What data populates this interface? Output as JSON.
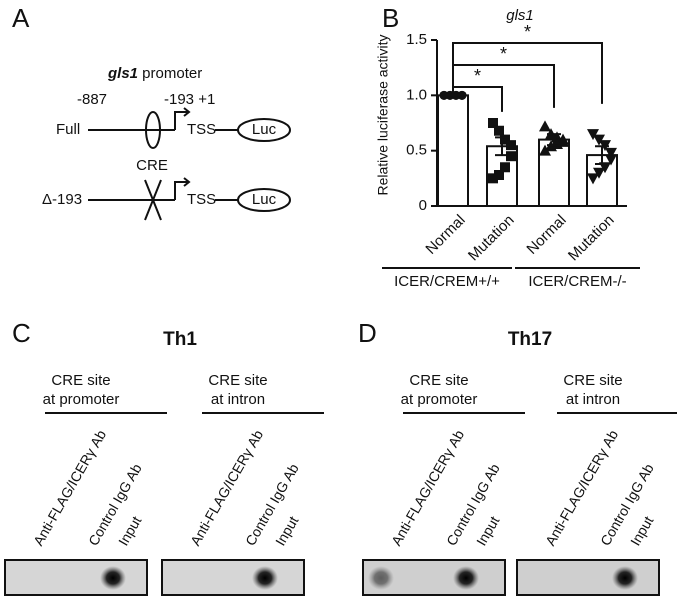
{
  "panel_labels": [
    "A",
    "B",
    "C",
    "D"
  ],
  "promoter": {
    "gene": "gls1",
    "title_rest": " promoter",
    "positions": [
      "-887",
      "-193 +1"
    ],
    "constructs": [
      {
        "name": "Full",
        "tss": "TSS",
        "reporter": "Luc"
      },
      {
        "name": "Δ-193",
        "tss": "TSS",
        "reporter": "Luc"
      }
    ],
    "element": "CRE"
  },
  "chart_data": {
    "type": "bar",
    "title": "gls1",
    "y_label": "Relative luciferase activity",
    "categories": [
      "Normal",
      "Mutation",
      "Normal",
      "Mutation"
    ],
    "groups": [
      "ICER/CREM+/+",
      "ICER/CREM-/-"
    ],
    "values": [
      1.0,
      0.54,
      0.6,
      0.46
    ],
    "errors": [
      0.005,
      0.08,
      0.05,
      0.08
    ],
    "points": [
      [
        1,
        1,
        1,
        1,
        1,
        1,
        1,
        1
      ],
      [
        0.75,
        0.68,
        0.6,
        0.55,
        0.45,
        0.35,
        0.28,
        0.25
      ],
      [
        0.72,
        0.65,
        0.62,
        0.6,
        0.58,
        0.56,
        0.54,
        0.5
      ],
      [
        0.65,
        0.6,
        0.55,
        0.48,
        0.42,
        0.35,
        0.3,
        0.25
      ]
    ],
    "markers": [
      "circle",
      "square",
      "triangle",
      "triangle-down"
    ],
    "color": "#ffffff",
    "ylim": [
      0,
      1.5
    ],
    "yticks": [
      0,
      0.5,
      {
        "value": 1,
        "label": "1.0"
      },
      1.5
    ],
    "significance": [
      "*",
      "*",
      "*"
    ]
  },
  "chip": [
    {
      "title": "Th1",
      "sites": [
        {
          "title": [
            "CRE site",
            "at promoter"
          ],
          "lanes": [
            "Anti-FLAG/ICERγ Ab",
            "Control IgG Ab",
            "Input"
          ]
        },
        {
          "title": [
            "CRE site",
            "at intron"
          ],
          "lanes": [
            "Anti-FLAG/ICERγ Ab",
            "Control IgG Ab",
            "Input"
          ]
        }
      ]
    },
    {
      "title": "Th17",
      "sites": [
        {
          "title": [
            "CRE site",
            "at promoter"
          ],
          "lanes": [
            "Anti-FLAG/ICERγ Ab",
            "Control IgG Ab",
            "Input"
          ]
        },
        {
          "title": [
            "CRE site",
            "at intron"
          ],
          "lanes": [
            "Anti-FLAG/ICERγ Ab",
            "Control IgG Ab",
            "Input"
          ]
        }
      ]
    }
  ]
}
